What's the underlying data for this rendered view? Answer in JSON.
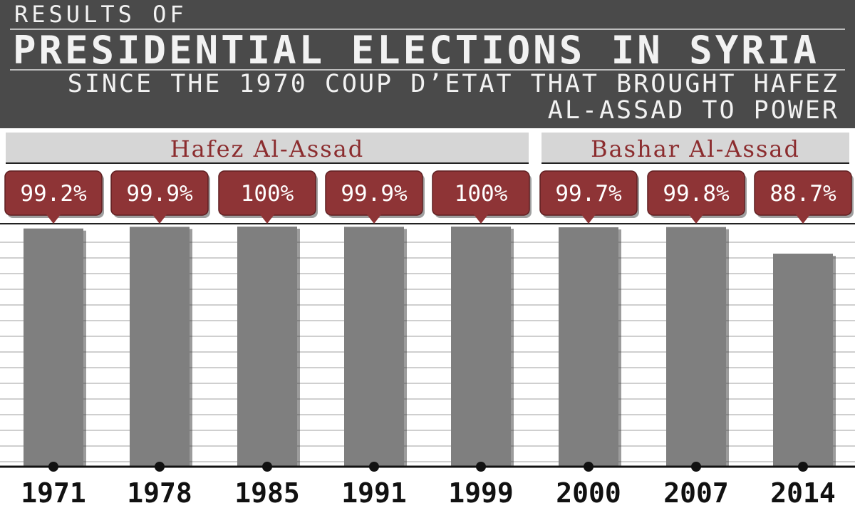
{
  "header": {
    "kicker": "RESULTS OF",
    "title": "PRESIDENTIAL ELECTIONS IN SYRIA",
    "subtitle_line1": "SINCE THE 1970 COUP D’ETAT THAT BROUGHT HAFEZ",
    "subtitle_line2": "AL-ASSAD TO POWER"
  },
  "colors": {
    "header_bg": "#4a4a4a",
    "bar": "#7f7f7f",
    "badge": "#8e3436",
    "group_band": "#d6d6d6",
    "group_text": "#8b2c2e"
  },
  "chart_data": {
    "type": "bar",
    "categories": [
      "1971",
      "1978",
      "1985",
      "1991",
      "1999",
      "2000",
      "2007",
      "2014"
    ],
    "values": [
      99.2,
      99.9,
      100,
      99.9,
      100,
      99.7,
      99.8,
      88.7
    ],
    "value_labels": [
      "99.2%",
      "99.9%",
      "100%",
      "99.9%",
      "100%",
      "99.7%",
      "99.8%",
      "88.7%"
    ],
    "groups": [
      {
        "label": "Hafez Al-Assad",
        "start": 0,
        "end": 4
      },
      {
        "label": "Bashar Al-Assad",
        "start": 5,
        "end": 7
      }
    ],
    "ylim": [
      0,
      100
    ],
    "grid": true,
    "legend": "none"
  }
}
